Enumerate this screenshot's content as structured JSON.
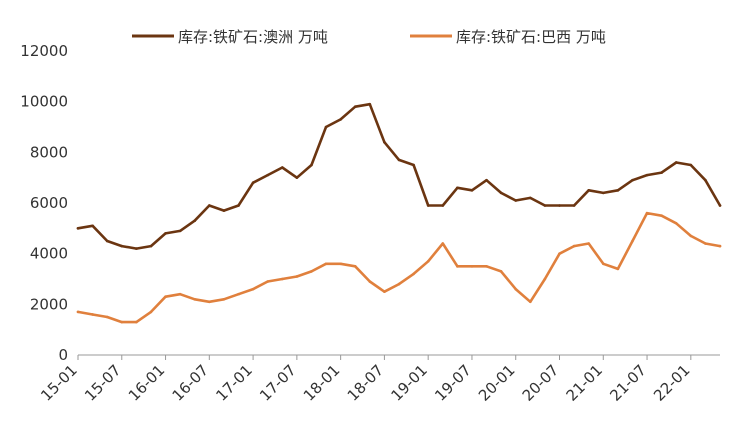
{
  "chart_data": {
    "type": "line",
    "title": "",
    "xlabel": "",
    "ylabel": "",
    "ylim": [
      0,
      12000
    ],
    "yticks": [
      0,
      2000,
      4000,
      6000,
      8000,
      10000,
      12000
    ],
    "xticks": [
      "15-01",
      "15-07",
      "16-01",
      "16-07",
      "17-01",
      "17-07",
      "18-01",
      "18-07",
      "19-01",
      "19-07",
      "20-01",
      "20-07",
      "21-01",
      "21-07",
      "22-01"
    ],
    "x": [
      "15-01",
      "15-03",
      "15-05",
      "15-07",
      "15-09",
      "15-11",
      "16-01",
      "16-03",
      "16-05",
      "16-07",
      "16-09",
      "16-11",
      "17-01",
      "17-03",
      "17-05",
      "17-07",
      "17-09",
      "17-11",
      "18-01",
      "18-03",
      "18-05",
      "18-07",
      "18-09",
      "18-11",
      "19-01",
      "19-03",
      "19-05",
      "19-07",
      "19-09",
      "19-11",
      "20-01",
      "20-03",
      "20-05",
      "20-07",
      "20-09",
      "20-11",
      "21-01",
      "21-03",
      "21-05",
      "21-07",
      "21-09",
      "21-11",
      "22-01",
      "22-03",
      "22-05"
    ],
    "grid": false,
    "legend_position": "top",
    "series": [
      {
        "name": "库存:铁矿石:澳洲 万吨",
        "color": "#6b3511",
        "values": [
          5000,
          5100,
          4500,
          4300,
          4200,
          4300,
          4800,
          4900,
          5300,
          5900,
          5700,
          5900,
          6800,
          7100,
          7400,
          7000,
          7500,
          9000,
          9300,
          9800,
          9900,
          8400,
          7700,
          7500,
          5900,
          5900,
          6600,
          6500,
          6900,
          6400,
          6100,
          6200,
          5900,
          5900,
          5900,
          6500,
          6400,
          6500,
          6900,
          7100,
          7200,
          7600,
          7500,
          6900,
          5900
        ]
      },
      {
        "name": "库存:铁矿石:巴西 万吨",
        "color": "#e0803d",
        "values": [
          1700,
          1600,
          1500,
          1300,
          1300,
          1700,
          2300,
          2400,
          2200,
          2100,
          2200,
          2400,
          2600,
          2900,
          3000,
          3100,
          3300,
          3600,
          3600,
          3500,
          2900,
          2500,
          2800,
          3200,
          3700,
          4400,
          3500,
          3500,
          3500,
          3300,
          2600,
          2100,
          3000,
          4000,
          4300,
          4400,
          3600,
          3400,
          4500,
          5600,
          5500,
          5200,
          4700,
          4400,
          4300
        ]
      }
    ]
  }
}
